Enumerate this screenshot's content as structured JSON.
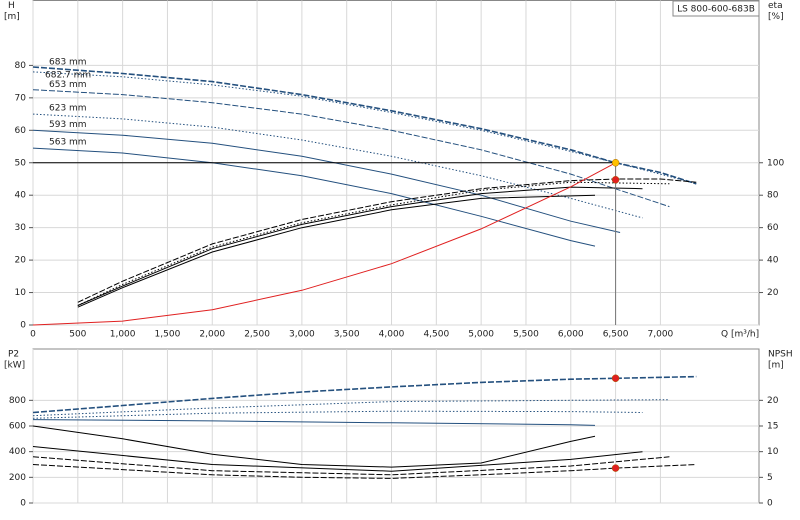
{
  "chart_data": [
    {
      "type": "line",
      "title": "LS 800-600-683B",
      "ylabel": "H",
      "yunit": "[m]",
      "y2label": "eta",
      "y2unit": "[%]",
      "xlabel": "Q [m³/h]",
      "xlim": [
        0,
        8100
      ],
      "xticks": [
        0,
        500,
        {
          "value": 1000,
          "label": "1,000"
        },
        {
          "value": 1500,
          "label": "1,500"
        },
        {
          "value": 2000,
          "label": "2,000"
        },
        {
          "value": 2500,
          "label": "2,500"
        },
        {
          "value": 3000,
          "label": "3,000"
        },
        {
          "value": 3500,
          "label": "3,500"
        },
        {
          "value": 4000,
          "label": "4,000"
        },
        {
          "value": 4500,
          "label": "4,500"
        },
        {
          "value": 5000,
          "label": "5,000"
        },
        {
          "value": 5500,
          "label": "5,500"
        },
        {
          "value": 6000,
          "label": "6,000"
        },
        {
          "value": 6500,
          "label": "6,500"
        },
        {
          "value": 7000,
          "label": "7,000"
        }
      ],
      "ylim": [
        0,
        100
      ],
      "yticks": [
        0,
        10,
        20,
        30,
        40,
        50,
        60,
        70,
        80
      ],
      "y2lim": [
        0,
        200
      ],
      "y2ticks": [
        20,
        40,
        60,
        80,
        100
      ],
      "grid": true,
      "series": [
        {
          "name": "683 mm",
          "color": "#24507e",
          "dash": "dashed",
          "x": [
            0,
            1000,
            2000,
            3000,
            4000,
            5000,
            6000,
            6500,
            7000,
            7400
          ],
          "values": [
            79.5,
            77.5,
            75,
            71,
            66,
            60.5,
            54,
            50,
            47,
            43.5
          ]
        },
        {
          "name": "682.7 mm",
          "color": "#24507e",
          "dash": "dotted",
          "x": [
            0,
            1000,
            2000,
            3000,
            4000,
            5000,
            6000,
            7000,
            7400
          ],
          "values": [
            78,
            76.5,
            74,
            70.5,
            65.5,
            60,
            53.5,
            46.5,
            43.5
          ]
        },
        {
          "name": "653 mm",
          "color": "#24507e",
          "dash": "dashed",
          "x": [
            0,
            1000,
            2000,
            3000,
            4000,
            5000,
            6000,
            7100
          ],
          "values": [
            72.5,
            71,
            68.5,
            65,
            60,
            54,
            46.5,
            36.5
          ]
        },
        {
          "name": "623 mm",
          "color": "#24507e",
          "dash": "dotted",
          "x": [
            0,
            1000,
            2000,
            3000,
            4000,
            5000,
            6000,
            6800
          ],
          "values": [
            65,
            63.5,
            61,
            57,
            52,
            46,
            39,
            33
          ]
        },
        {
          "name": "593 mm",
          "color": "#24507e",
          "dash": "solid",
          "x": [
            0,
            1000,
            2000,
            3000,
            4000,
            5000,
            6000,
            6550
          ],
          "values": [
            60,
            58.5,
            56,
            52,
            46.5,
            40,
            32,
            28.5
          ]
        },
        {
          "name": "563 mm",
          "color": "#24507e",
          "dash": "solid",
          "x": [
            0,
            1000,
            2000,
            3000,
            4000,
            5000,
            6000,
            6270
          ],
          "values": [
            54.5,
            53,
            50,
            46,
            40.5,
            33.5,
            26,
            24.3
          ]
        },
        {
          "color": "#000000",
          "dash": "dashed",
          "axis": "y2",
          "x": [
            500,
            1000,
            2000,
            3000,
            4000,
            5000,
            6000,
            6500,
            7000,
            7400
          ],
          "values": [
            14,
            27,
            50,
            65,
            76,
            84,
            89,
            90,
            90,
            88
          ]
        },
        {
          "color": "#000000",
          "dash": "dotted",
          "axis": "y2",
          "x": [
            500,
            1000,
            2000,
            3000,
            4000,
            5000,
            6000,
            7100
          ],
          "values": [
            12,
            25,
            48,
            63,
            74,
            83,
            88,
            87
          ]
        },
        {
          "color": "#000000",
          "dash": "solid",
          "axis": "y2",
          "x": [
            500,
            1000,
            2000,
            3000,
            4000,
            5000,
            6000,
            6800
          ],
          "values": [
            12,
            24,
            47,
            62,
            73,
            81,
            85,
            84
          ]
        },
        {
          "color": "#000000",
          "dash": "solid",
          "axis": "y2",
          "x": [
            500,
            1000,
            2000,
            3000,
            4000,
            5000,
            6270
          ],
          "values": [
            11,
            23,
            45,
            60,
            71,
            78,
            80
          ]
        },
        {
          "color": "#e02020",
          "dash": "solid",
          "x": [
            0,
            1000,
            2000,
            3000,
            4000,
            5000,
            6000,
            6500
          ],
          "values": [
            0,
            1.2,
            4.7,
            10.7,
            18.9,
            29.6,
            42.6,
            50
          ]
        }
      ],
      "points": [
        {
          "x": 6500,
          "value": 50,
          "color": "#ffc000"
        },
        {
          "x": 6500,
          "value": 89.5,
          "axis": "y2",
          "color": "#e02020"
        }
      ]
    },
    {
      "type": "line",
      "ylabel": "P2",
      "yunit": "[kW]",
      "y2label": "NPSH",
      "y2unit": "[m]",
      "xlim": [
        0,
        8100
      ],
      "ylim": [
        0,
        1200
      ],
      "yticks": [
        0,
        200,
        400,
        600,
        800
      ],
      "y2lim": [
        0,
        30
      ],
      "y2ticks": [
        0,
        5,
        10,
        15,
        20
      ],
      "grid": true,
      "series": [
        {
          "color": "#24507e",
          "dash": "dashed",
          "x": [
            0,
            1000,
            2000,
            3000,
            4000,
            5000,
            6000,
            6500,
            7400
          ],
          "values": [
            705,
            760,
            815,
            865,
            905,
            940,
            965,
            972,
            985
          ]
        },
        {
          "color": "#24507e",
          "dash": "dotted",
          "x": [
            0,
            2000,
            4000,
            6000,
            7100
          ],
          "values": [
            680,
            740,
            790,
            800,
            805
          ]
        },
        {
          "color": "#24507e",
          "dash": "dotted",
          "x": [
            0,
            2000,
            4000,
            6000,
            6800
          ],
          "values": [
            660,
            700,
            715,
            712,
            705
          ]
        },
        {
          "color": "#24507e",
          "dash": "solid",
          "x": [
            0,
            2000,
            4000,
            6000,
            6270
          ],
          "values": [
            650,
            640,
            625,
            610,
            605
          ]
        },
        {
          "color": "#000000",
          "dash": "dashed",
          "axis": "y2",
          "x": [
            0,
            1000,
            2000,
            3000,
            4000,
            5000,
            6000,
            6500,
            7400
          ],
          "values": [
            7.5,
            6.5,
            5.5,
            5,
            4.8,
            5.5,
            6.3,
            6.8,
            7.5
          ]
        },
        {
          "color": "#000000",
          "dash": "dashed",
          "axis": "y2",
          "x": [
            0,
            2000,
            4000,
            6000,
            7100
          ],
          "values": [
            9,
            6.3,
            5.5,
            7.2,
            9
          ]
        },
        {
          "color": "#000000",
          "dash": "solid",
          "axis": "y2",
          "x": [
            0,
            2000,
            4000,
            6000,
            6800
          ],
          "values": [
            11,
            7.5,
            6.2,
            8.5,
            10
          ]
        },
        {
          "color": "#000000",
          "dash": "solid",
          "axis": "y2",
          "x": [
            0,
            1000,
            2000,
            3000,
            4000,
            5000,
            6000,
            6270
          ],
          "values": [
            15,
            12.5,
            9.5,
            7.5,
            7,
            7.8,
            12,
            13
          ]
        }
      ],
      "points": [
        {
          "x": 6500,
          "value": 972,
          "color": "#e02020"
        },
        {
          "x": 6500,
          "value": 6.8,
          "axis": "y2",
          "color": "#e02020"
        }
      ]
    }
  ]
}
